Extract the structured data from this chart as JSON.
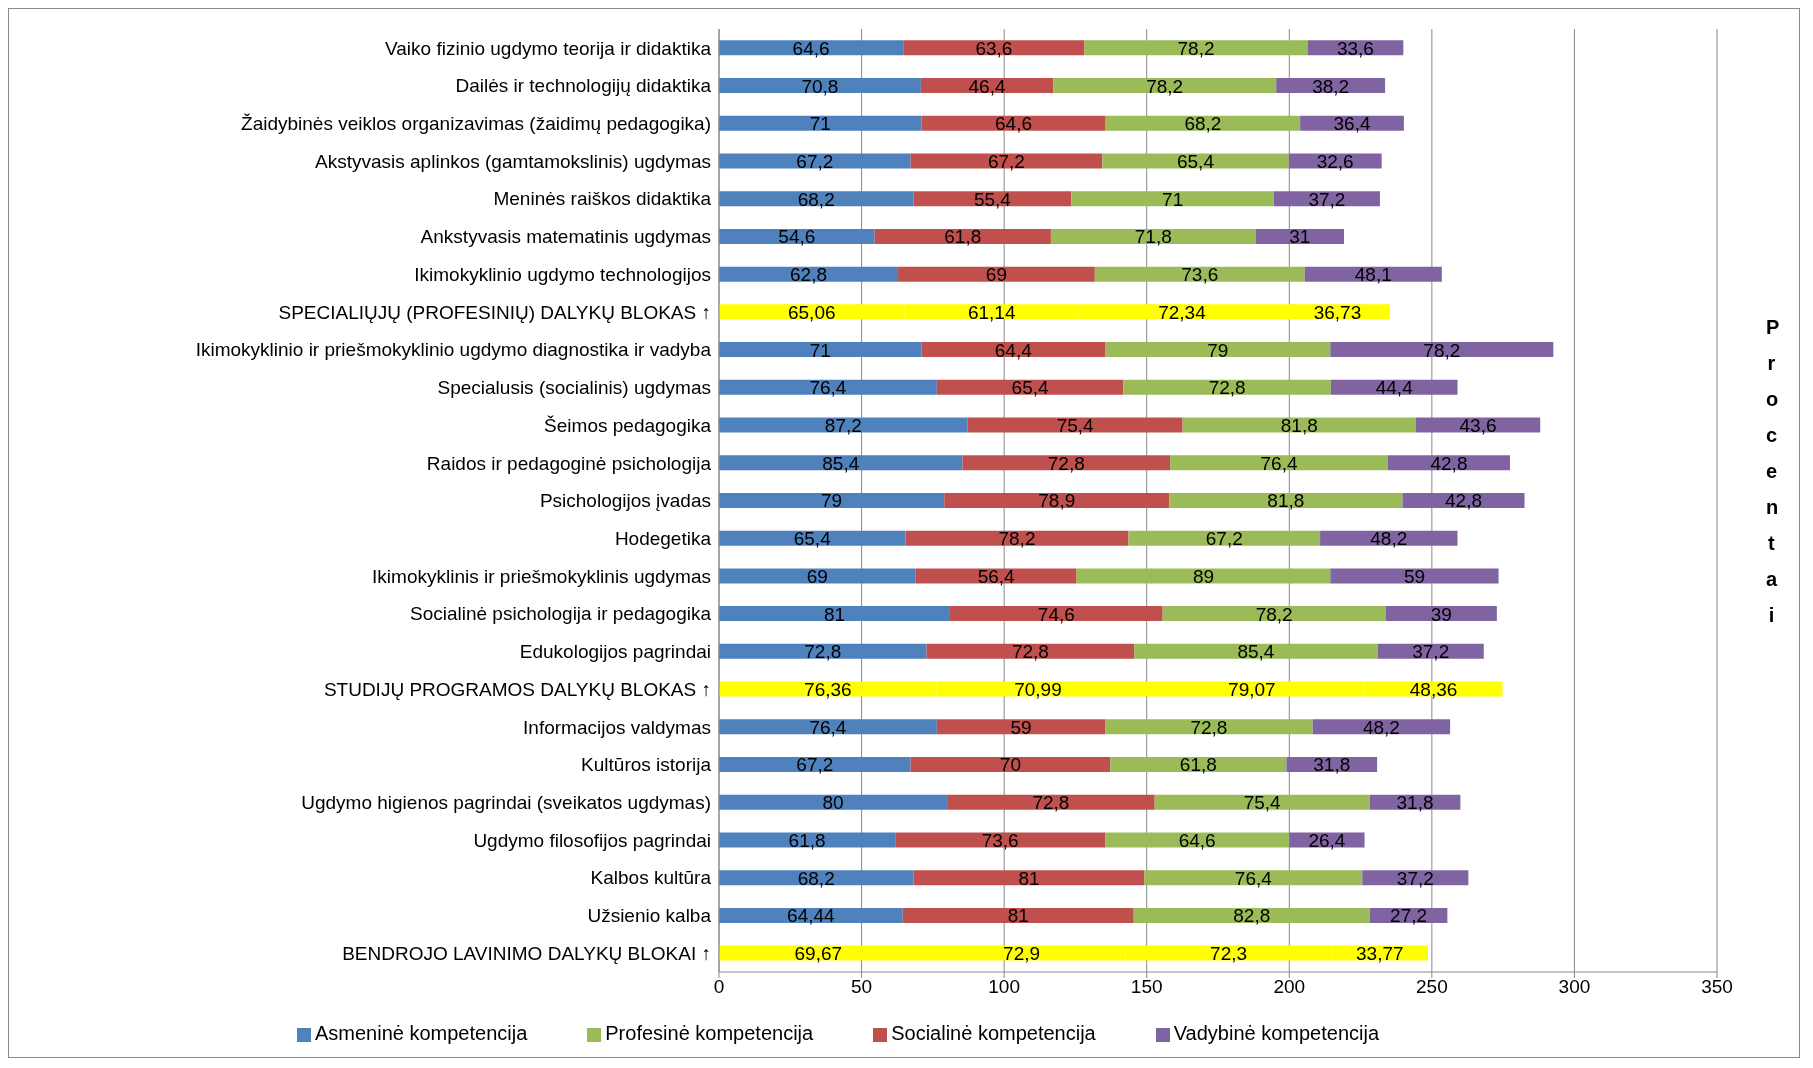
{
  "chart_data": {
    "type": "bar",
    "orientation": "horizontal",
    "stacked": true,
    "xlabel": "Procentai",
    "categories": [
      "Vaiko fizinio ugdymo teorija ir didaktika",
      "Dailės ir technologijų didaktika",
      "Žaidybinės veiklos organizavimas (žaidimų pedagogika)",
      "Akstyvasis aplinkos (gamtamokslinis)  ugdymas",
      "Meninės raiškos didaktika",
      "Ankstyvasis matematinis  ugdymas",
      "Ikimokyklinio ugdymo technologijos",
      "SPECIALIŲJŲ (PROFESINIŲ)  DALYKŲ BLOKAS ↑",
      "Ikimokyklinio ir priešmokyklinio ugdymo diagnostika ir vadyba",
      "Specialusis (socialinis) ugdymas",
      "Šeimos pedagogika",
      "Raidos ir pedagoginė psichologija",
      "Psichologijos įvadas",
      "Hodegetika",
      "Ikimokyklinis ir priešmokyklinis ugdymas",
      "Socialinė psichologija ir pedagogika",
      "Edukologijos pagrindai",
      "STUDIJŲ PROGRAMOS DALYKŲ BLOKAS ↑",
      "Informacijos valdymas",
      "Kultūros istorija",
      "Ugdymo higienos pagrindai (sveikatos ugdymas)",
      "Ugdymo filosofijos pagrindai",
      "Kalbos kultūra",
      "Užsienio kalba",
      "BENDROJO LAVINIMO DALYKŲ BLOKAI ↑"
    ],
    "series": [
      {
        "name": "Asmeninė kompetencija",
        "color": "#4f81bd",
        "colors": [
          "#4f81bd",
          "#4f81bd",
          "#4f81bd",
          "#4f81bd",
          "#4f81bd",
          "#4f81bd",
          "#4f81bd",
          "#ffff00",
          "#4f81bd",
          "#4f81bd",
          "#4f81bd",
          "#4f81bd",
          "#4f81bd",
          "#4f81bd",
          "#4f81bd",
          "#4f81bd",
          "#4f81bd",
          "#ffff00",
          "#4f81bd",
          "#4f81bd",
          "#4f81bd",
          "#4f81bd",
          "#4f81bd",
          "#4f81bd",
          "#ffff00"
        ],
        "values": [
          64.6,
          70.8,
          71,
          67.2,
          68.2,
          54.6,
          62.8,
          65.06,
          71,
          76.4,
          87.2,
          85.4,
          79,
          65.4,
          69,
          81,
          72.8,
          76.36,
          76.4,
          67.2,
          80,
          61.8,
          68.2,
          64.44,
          69.67
        ],
        "value_labels": [
          "64,6",
          "70,8",
          "71",
          "67,2",
          "68,2",
          "54,6",
          "62,8",
          "65,06",
          "71",
          "76,4",
          "87,2",
          "85,4",
          "79",
          "65,4",
          "69",
          "81",
          "72,8",
          "76,36",
          "76,4",
          "67,2",
          "80",
          "61,8",
          "68,2",
          "64,44",
          "69,67"
        ]
      },
      {
        "name": "Socialinė kompetencija",
        "color": "#c0504d",
        "colors": [
          "#c0504d",
          "#c0504d",
          "#c0504d",
          "#c0504d",
          "#c0504d",
          "#c0504d",
          "#c0504d",
          "#ffff00",
          "#c0504d",
          "#c0504d",
          "#c0504d",
          "#c0504d",
          "#c0504d",
          "#c0504d",
          "#c0504d",
          "#c0504d",
          "#c0504d",
          "#ffff00",
          "#c0504d",
          "#c0504d",
          "#c0504d",
          "#c0504d",
          "#c0504d",
          "#c0504d",
          "#ffff00"
        ],
        "values": [
          63.6,
          46.4,
          64.6,
          67.2,
          55.4,
          61.8,
          69,
          61.14,
          64.4,
          65.4,
          75.4,
          72.8,
          78.9,
          78.2,
          56.4,
          74.6,
          72.8,
          70.99,
          59,
          70,
          72.8,
          73.6,
          81,
          81,
          72.9
        ],
        "value_labels": [
          "63,6",
          "46,4",
          "64,6",
          "67,2",
          "55,4",
          "61,8",
          "69",
          "61,14",
          "64,4",
          "65,4",
          "75,4",
          "72,8",
          "78,9",
          "78,2",
          "56,4",
          "74,6",
          "72,8",
          "70,99",
          "59",
          "70",
          "72,8",
          "73,6",
          "81",
          "81",
          "72,9"
        ]
      },
      {
        "name": "Profesinė kompetencija",
        "color": "#9bbb59",
        "colors": [
          "#9bbb59",
          "#9bbb59",
          "#9bbb59",
          "#9bbb59",
          "#9bbb59",
          "#9bbb59",
          "#9bbb59",
          "#ffff00",
          "#9bbb59",
          "#9bbb59",
          "#9bbb59",
          "#9bbb59",
          "#9bbb59",
          "#9bbb59",
          "#9bbb59",
          "#9bbb59",
          "#9bbb59",
          "#ffff00",
          "#9bbb59",
          "#9bbb59",
          "#9bbb59",
          "#9bbb59",
          "#9bbb59",
          "#9bbb59",
          "#ffff00"
        ],
        "values": [
          78.2,
          78.2,
          68.2,
          65.4,
          71,
          71.8,
          73.6,
          72.34,
          79,
          72.8,
          81.8,
          76.4,
          81.8,
          67.2,
          89,
          78.2,
          85.4,
          79.07,
          72.8,
          61.8,
          75.4,
          64.6,
          76.4,
          82.8,
          72.3
        ],
        "value_labels": [
          "78,2",
          "78,2",
          "68,2",
          "65,4",
          "71",
          "71,8",
          "73,6",
          "72,34",
          "79",
          "72,8",
          "81,8",
          "76,4",
          "81,8",
          "67,2",
          "89",
          "78,2",
          "85,4",
          "79,07",
          "72,8",
          "61,8",
          "75,4",
          "64,6",
          "76,4",
          "82,8",
          "72,3"
        ]
      },
      {
        "name": "Vadybinė kompetencija",
        "color": "#8064a2",
        "colors": [
          "#8064a2",
          "#8064a2",
          "#8064a2",
          "#8064a2",
          "#8064a2",
          "#8064a2",
          "#8064a2",
          "#ffff00",
          "#8064a2",
          "#8064a2",
          "#8064a2",
          "#8064a2",
          "#8064a2",
          "#8064a2",
          "#8064a2",
          "#8064a2",
          "#8064a2",
          "#ffff00",
          "#8064a2",
          "#8064a2",
          "#8064a2",
          "#8064a2",
          "#8064a2",
          "#8064a2",
          "#ffff00"
        ],
        "values": [
          33.6,
          38.2,
          36.4,
          32.6,
          37.2,
          31,
          48.1,
          36.73,
          78.2,
          44.4,
          43.6,
          42.8,
          42.8,
          48.2,
          59,
          39,
          37.2,
          48.36,
          48.2,
          31.8,
          31.8,
          26.4,
          37.2,
          27.2,
          33.77
        ],
        "value_labels": [
          "33,6",
          "38,2",
          "36,4",
          "32,6",
          "37,2",
          "31",
          "48,1",
          "36,73",
          "78,2",
          "44,4",
          "43,6",
          "42,8",
          "42,8",
          "48,2",
          "59",
          "39",
          "37,2",
          "48,36",
          "48,2",
          "31,8",
          "31,8",
          "26,4",
          "37,2",
          "27,2",
          "33,77"
        ]
      }
    ],
    "xlim": [
      0,
      350
    ],
    "xticks": [
      0,
      50,
      100,
      150,
      200,
      250,
      300,
      350
    ],
    "grid": "x",
    "legend": "bottom"
  }
}
